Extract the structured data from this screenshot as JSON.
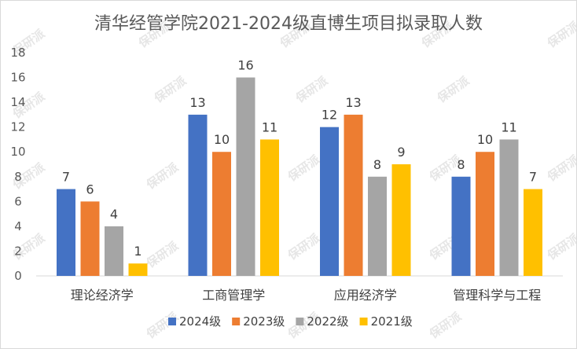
{
  "watermark": "保研派",
  "chart_data": {
    "type": "bar",
    "title": "清华经管学院2021-2024级直博生项目拟录取人数",
    "xlabel": "",
    "ylabel": "",
    "categories": [
      "理论经济学",
      "工商管理学",
      "应用经济学",
      "管理科学与工程"
    ],
    "series": [
      {
        "name": "2024级",
        "color": "#4472c4",
        "values": [
          7,
          13,
          12,
          8
        ]
      },
      {
        "name": "2023级",
        "color": "#ed7d31",
        "values": [
          6,
          10,
          13,
          10
        ]
      },
      {
        "name": "2022级",
        "color": "#a5a5a5",
        "values": [
          4,
          16,
          8,
          11
        ]
      },
      {
        "name": "2021级",
        "color": "#ffc000",
        "values": [
          1,
          11,
          9,
          7
        ]
      }
    ],
    "ylim": [
      0,
      18
    ],
    "yticks": [
      0,
      2,
      4,
      6,
      8,
      10,
      12,
      14,
      16,
      18
    ],
    "grid": false,
    "legend": "bottom",
    "data_labels": true
  }
}
